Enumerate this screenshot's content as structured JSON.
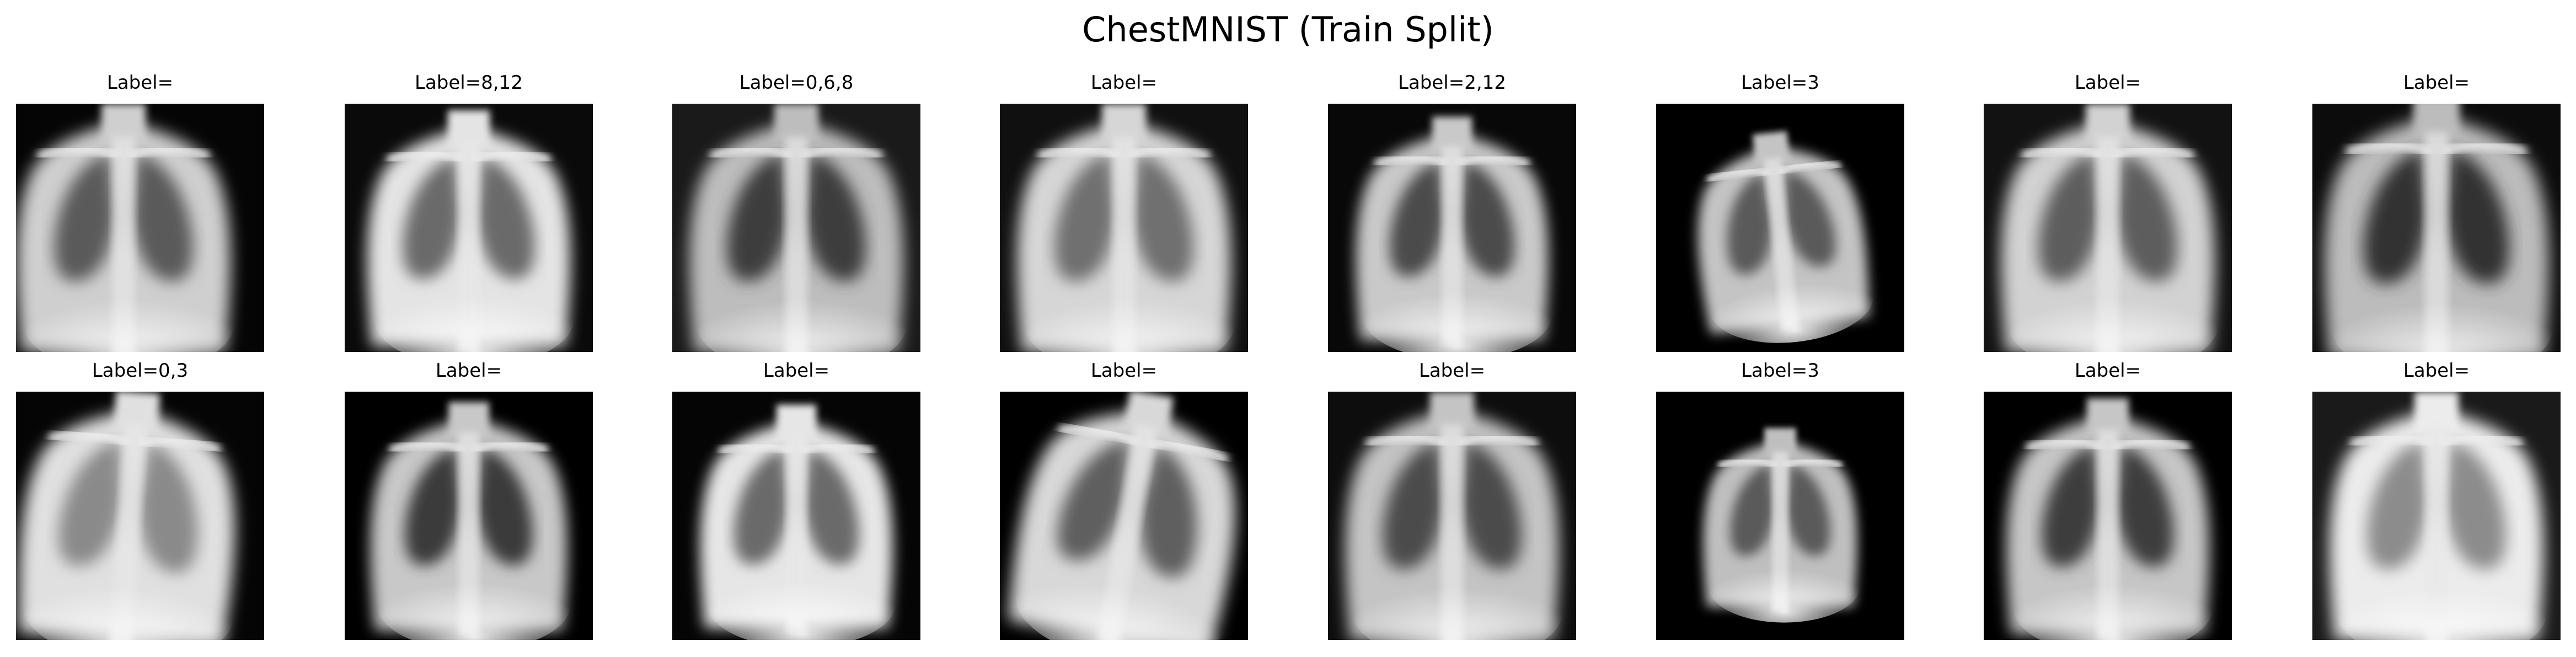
{
  "figure": {
    "title": "ChestMNIST (Train Split)"
  },
  "panels": [
    {
      "label": "Label=",
      "icon": "chest-xray-image"
    },
    {
      "label": "Label=8,12",
      "icon": "chest-xray-image"
    },
    {
      "label": "Label=0,6,8",
      "icon": "chest-xray-image"
    },
    {
      "label": "Label=",
      "icon": "chest-xray-image"
    },
    {
      "label": "Label=2,12",
      "icon": "chest-xray-image"
    },
    {
      "label": "Label=3",
      "icon": "chest-xray-image"
    },
    {
      "label": "Label=",
      "icon": "chest-xray-image"
    },
    {
      "label": "Label=",
      "icon": "chest-xray-image"
    },
    {
      "label": "Label=0,3",
      "icon": "chest-xray-image"
    },
    {
      "label": "Label=",
      "icon": "chest-xray-image"
    },
    {
      "label": "Label=",
      "icon": "chest-xray-image"
    },
    {
      "label": "Label=",
      "icon": "chest-xray-image"
    },
    {
      "label": "Label=",
      "icon": "chest-xray-image"
    },
    {
      "label": "Label=3",
      "icon": "chest-xray-image"
    },
    {
      "label": "Label=",
      "icon": "chest-xray-image"
    },
    {
      "label": "Label=",
      "icon": "chest-xray-image"
    }
  ]
}
